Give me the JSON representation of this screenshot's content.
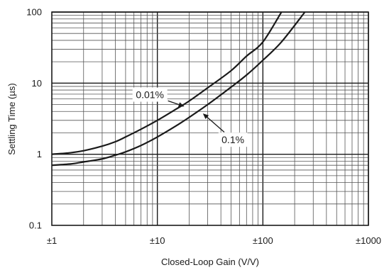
{
  "chart_data": {
    "type": "line",
    "xlabel": "Closed-Loop Gain (V/V)",
    "ylabel": "Settling Time (µs)",
    "x_scale": "log",
    "y_scale": "log",
    "xlim": [
      1,
      1000
    ],
    "ylim": [
      0.1,
      100
    ],
    "grid": true,
    "x_ticks": [
      {
        "value": 1,
        "label": "±1"
      },
      {
        "value": 10,
        "label": "±10"
      },
      {
        "value": 100,
        "label": "±100"
      },
      {
        "value": 1000,
        "label": "±1000"
      }
    ],
    "y_ticks": [
      {
        "value": 0.1,
        "label": "0.1"
      },
      {
        "value": 1,
        "label": "1"
      },
      {
        "value": 10,
        "label": "10"
      },
      {
        "value": 100,
        "label": "100"
      }
    ],
    "series": [
      {
        "name": "0.01%",
        "points": [
          [
            1,
            1.0
          ],
          [
            1.5,
            1.05
          ],
          [
            2,
            1.12
          ],
          [
            3,
            1.3
          ],
          [
            4,
            1.5
          ],
          [
            5,
            1.75
          ],
          [
            7,
            2.25
          ],
          [
            10,
            3.0
          ],
          [
            15,
            4.3
          ],
          [
            20,
            5.6
          ],
          [
            30,
            8.6
          ],
          [
            50,
            15
          ],
          [
            70,
            24
          ],
          [
            100,
            38
          ],
          [
            150,
            100
          ]
        ]
      },
      {
        "name": "0.1%",
        "points": [
          [
            1,
            0.7
          ],
          [
            1.5,
            0.73
          ],
          [
            2,
            0.78
          ],
          [
            3,
            0.86
          ],
          [
            4,
            0.97
          ],
          [
            5,
            1.08
          ],
          [
            7,
            1.33
          ],
          [
            10,
            1.75
          ],
          [
            15,
            2.5
          ],
          [
            20,
            3.3
          ],
          [
            30,
            5.0
          ],
          [
            50,
            8.8
          ],
          [
            70,
            13
          ],
          [
            100,
            21
          ],
          [
            150,
            38
          ],
          [
            250,
            100
          ]
        ]
      }
    ],
    "annotations": [
      {
        "text": "0.01%",
        "series": "0.01%",
        "label_at": [
          8.5,
          6.9
        ],
        "arrow_to": [
          18,
          4.7
        ]
      },
      {
        "text": "0.1%",
        "series": "0.1%",
        "label_at": [
          52,
          1.6
        ],
        "arrow_to": [
          27,
          3.75
        ]
      }
    ]
  }
}
